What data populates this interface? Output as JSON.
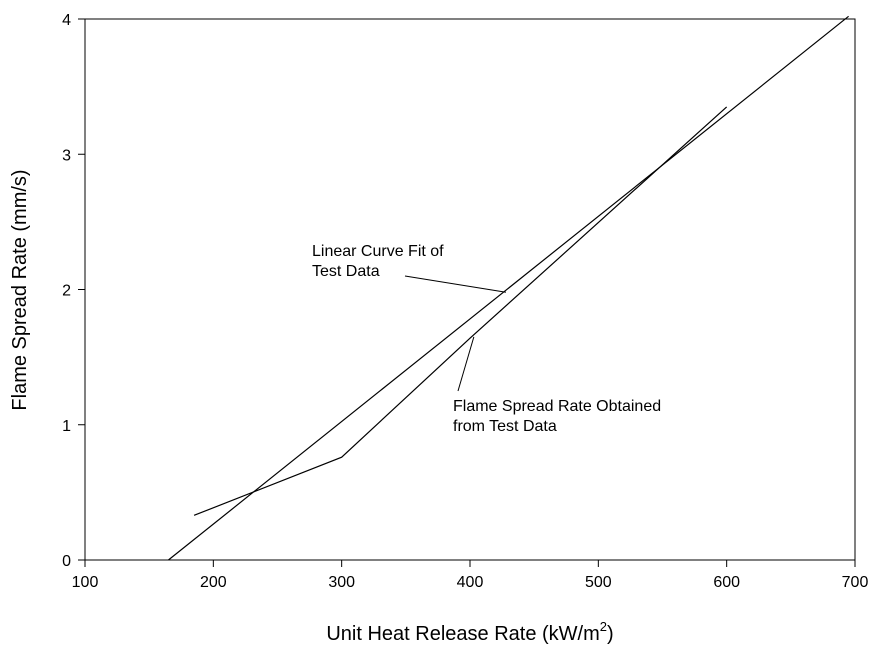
{
  "chart_data": {
    "type": "line",
    "xlabel": "Unit Heat Release Rate (kW/m",
    "xlabel_sup": "2",
    "xlabel_close": ")",
    "ylabel": "Flame Spread Rate (mm/s)",
    "xlim": [
      100,
      700
    ],
    "ylim": [
      0,
      4
    ],
    "xticks": [
      100,
      200,
      300,
      400,
      500,
      600,
      700
    ],
    "yticks": [
      0,
      1,
      2,
      3,
      4
    ],
    "grid": false,
    "series": [
      {
        "values_x": [
          165,
          695
        ],
        "values_y": [
          0,
          4.02
        ]
      },
      {
        "values_x": [
          185,
          300,
          400,
          600
        ],
        "values_y": [
          0.33,
          0.76,
          1.64,
          3.35
        ]
      }
    ],
    "annotations": [
      {
        "lines": [
          "Linear Curve Fit of",
          "Test Data"
        ],
        "target": [
          428,
          1.98
        ]
      },
      {
        "lines": [
          "Flame Spread Rate Obtained",
          "from Test Data"
        ],
        "target": [
          403,
          1.65
        ]
      }
    ]
  }
}
